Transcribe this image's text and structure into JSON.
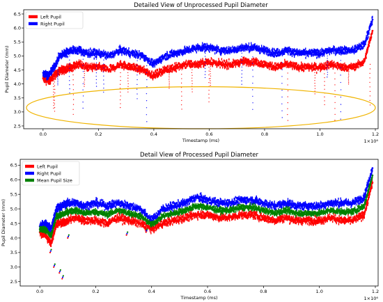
{
  "chart_data": [
    {
      "type": "scatter",
      "title": "Detailed View of Unprocessed Pupil Diameter",
      "xlabel": "Timestamp (ms)",
      "ylabel": "Pupil Diameter (mm)",
      "x_offset_label": "1×10⁶",
      "xlim": [
        -0.07,
        1.21
      ],
      "ylim": [
        2.4,
        6.65
      ],
      "xticks": [
        "0.0",
        "0.2",
        "0.4",
        "0.6",
        "0.8",
        "1.0",
        "1.2"
      ],
      "yticks": [
        "2.5",
        "3.0",
        "3.5",
        "4.0",
        "4.5",
        "5.0",
        "5.5",
        "6.0",
        "6.5"
      ],
      "legend_position": "top-left",
      "annotation": {
        "shape": "ellipse",
        "color": "#f0b400",
        "cx": 0.57,
        "cy": 3.15,
        "rx": 0.63,
        "ry": 0.75
      },
      "series": [
        {
          "name": "Left Pupil",
          "color": "#ff0000",
          "x": [
            0.0,
            0.02,
            0.04,
            0.06,
            0.08,
            0.1,
            0.13,
            0.16,
            0.2,
            0.24,
            0.28,
            0.32,
            0.36,
            0.4,
            0.44,
            0.48,
            0.52,
            0.56,
            0.6,
            0.64,
            0.68,
            0.72,
            0.76,
            0.8,
            0.84,
            0.88,
            0.92,
            0.96,
            1.0,
            1.04,
            1.08,
            1.12,
            1.16,
            1.19
          ],
          "y": [
            4.2,
            4.1,
            4.3,
            4.5,
            4.5,
            4.6,
            4.7,
            4.6,
            4.6,
            4.5,
            4.7,
            4.6,
            4.5,
            4.3,
            4.5,
            4.6,
            4.7,
            4.7,
            4.8,
            4.7,
            4.7,
            4.8,
            4.8,
            4.7,
            4.6,
            4.7,
            4.6,
            4.6,
            4.6,
            4.7,
            4.6,
            4.6,
            4.8,
            5.9
          ]
        },
        {
          "name": "Right Pupil",
          "color": "#0000ff",
          "x": [
            0.0,
            0.02,
            0.04,
            0.06,
            0.08,
            0.1,
            0.13,
            0.16,
            0.2,
            0.24,
            0.28,
            0.32,
            0.36,
            0.4,
            0.44,
            0.48,
            0.52,
            0.56,
            0.6,
            0.64,
            0.68,
            0.72,
            0.76,
            0.8,
            0.84,
            0.88,
            0.92,
            0.96,
            1.0,
            1.04,
            1.08,
            1.12,
            1.16,
            1.19
          ],
          "y": [
            4.4,
            4.3,
            4.6,
            5.0,
            5.1,
            5.2,
            5.2,
            5.1,
            5.1,
            5.0,
            5.2,
            5.1,
            5.0,
            4.7,
            5.0,
            5.1,
            5.2,
            5.3,
            5.3,
            5.2,
            5.2,
            5.3,
            5.3,
            5.2,
            5.1,
            5.2,
            5.1,
            5.1,
            5.1,
            5.2,
            5.2,
            5.2,
            5.4,
            6.3
          ]
        }
      ]
    },
    {
      "type": "scatter",
      "title": "Detail View of Processed Pupil Diameter",
      "xlabel": "Timestamp (ms)",
      "ylabel": "Pupil Diameter (mm)",
      "x_offset_label": "1×10⁶",
      "xlim": [
        -0.07,
        1.21
      ],
      "ylim": [
        2.35,
        6.7
      ],
      "xticks": [
        "0.0",
        "0.2",
        "0.4",
        "0.6",
        "0.8",
        "1.0",
        "1.2"
      ],
      "yticks": [
        "2.5",
        "3.0",
        "3.5",
        "4.0",
        "4.5",
        "5.0",
        "5.5",
        "6.0",
        "6.5"
      ],
      "legend_position": "top-left",
      "series": [
        {
          "name": "Left Pupil",
          "color": "#ff0000",
          "x": [
            0.0,
            0.02,
            0.04,
            0.06,
            0.08,
            0.1,
            0.13,
            0.16,
            0.2,
            0.24,
            0.28,
            0.32,
            0.36,
            0.4,
            0.44,
            0.48,
            0.52,
            0.56,
            0.6,
            0.64,
            0.68,
            0.72,
            0.76,
            0.8,
            0.84,
            0.88,
            0.92,
            0.96,
            1.0,
            1.04,
            1.08,
            1.12,
            1.16,
            1.19
          ],
          "y": [
            4.2,
            4.1,
            3.8,
            4.5,
            4.5,
            4.6,
            4.7,
            4.6,
            4.6,
            4.5,
            4.7,
            4.6,
            4.5,
            4.3,
            4.5,
            4.6,
            4.7,
            4.8,
            4.8,
            4.7,
            4.7,
            4.8,
            4.8,
            4.7,
            4.6,
            4.7,
            4.6,
            4.6,
            4.6,
            4.7,
            4.6,
            4.6,
            4.8,
            5.9
          ]
        },
        {
          "name": "Right Pupil",
          "color": "#0000ff",
          "x": [
            0.0,
            0.02,
            0.04,
            0.06,
            0.08,
            0.1,
            0.13,
            0.16,
            0.2,
            0.24,
            0.28,
            0.32,
            0.36,
            0.4,
            0.44,
            0.48,
            0.52,
            0.56,
            0.6,
            0.64,
            0.68,
            0.72,
            0.76,
            0.8,
            0.84,
            0.88,
            0.92,
            0.96,
            1.0,
            1.04,
            1.08,
            1.12,
            1.16,
            1.19
          ],
          "y": [
            4.4,
            4.5,
            4.3,
            5.0,
            5.1,
            5.2,
            5.2,
            5.1,
            5.2,
            5.1,
            5.2,
            5.1,
            5.0,
            4.6,
            5.0,
            5.1,
            5.2,
            5.4,
            5.3,
            5.2,
            5.2,
            5.3,
            5.3,
            5.2,
            5.1,
            5.2,
            5.1,
            5.1,
            5.1,
            5.2,
            5.2,
            5.2,
            5.4,
            6.4
          ]
        },
        {
          "name": "Mean Pupil Size",
          "color": "#008000",
          "x": [
            0.0,
            0.02,
            0.04,
            0.06,
            0.08,
            0.1,
            0.13,
            0.16,
            0.2,
            0.24,
            0.28,
            0.32,
            0.36,
            0.4,
            0.44,
            0.48,
            0.52,
            0.56,
            0.6,
            0.64,
            0.68,
            0.72,
            0.76,
            0.8,
            0.84,
            0.88,
            0.92,
            0.96,
            1.0,
            1.04,
            1.08,
            1.12,
            1.16,
            1.19
          ],
          "y": [
            4.3,
            4.3,
            4.05,
            4.75,
            4.8,
            4.9,
            4.95,
            4.85,
            4.9,
            4.8,
            4.95,
            4.85,
            4.75,
            4.45,
            4.75,
            4.85,
            4.95,
            5.1,
            5.05,
            4.95,
            4.95,
            5.05,
            5.05,
            4.95,
            4.85,
            4.95,
            4.85,
            4.85,
            4.85,
            4.95,
            4.9,
            4.9,
            5.1,
            6.15
          ]
        }
      ]
    }
  ]
}
